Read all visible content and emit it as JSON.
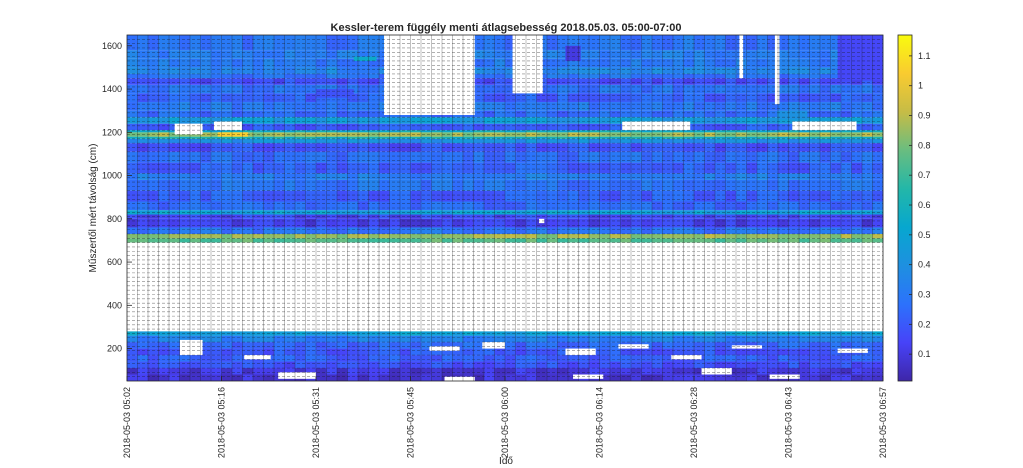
{
  "chart_data": {
    "type": "heatmap",
    "title": "Kessler-terem függély menti átlagsebesség 2018.05.03. 05:00-07:00",
    "xlabel": "Idő",
    "ylabel": "Műszertől mért távolság (cm)",
    "x_tick_labels": [
      "2018-05-03 05:02",
      "2018-05-03 05:16",
      "2018-05-03 05:31",
      "2018-05-03 05:45",
      "2018-05-03 06:00",
      "2018-05-03 06:14",
      "2018-05-03 06:28",
      "2018-05-03 06:43",
      "2018-05-03 06:57"
    ],
    "y_ticks": [
      200,
      400,
      600,
      800,
      1000,
      1200,
      1400,
      1600
    ],
    "ylim": [
      50,
      1650
    ],
    "colorbar": {
      "ticks": [
        0.1,
        0.2,
        0.3,
        0.4,
        0.5,
        0.6,
        0.7,
        0.8,
        0.9,
        1,
        1.1
      ],
      "range": [
        0.01,
        1.17
      ],
      "colormap": "parula",
      "stops": [
        "#3e26a8",
        "#4743f8",
        "#2c72fc",
        "#1e90e0",
        "#07a7cf",
        "#23b7a8",
        "#69bd80",
        "#c6bc46",
        "#f9cb30",
        "#f9fb0e"
      ]
    },
    "depth_bands": [
      {
        "from": 50,
        "to": 80,
        "value": 0.08
      },
      {
        "from": 80,
        "to": 110,
        "value": 0.1
      },
      {
        "from": 110,
        "to": 140,
        "value": 0.18
      },
      {
        "from": 140,
        "to": 170,
        "value": 0.22
      },
      {
        "from": 170,
        "to": 200,
        "value": 0.2
      },
      {
        "from": 200,
        "to": 230,
        "value": 0.24
      },
      {
        "from": 230,
        "to": 260,
        "value": 0.32
      },
      {
        "from": 260,
        "to": 280,
        "value": 0.5
      },
      {
        "from": 280,
        "to": 690,
        "value": null
      },
      {
        "from": 690,
        "to": 710,
        "value": 0.75
      },
      {
        "from": 710,
        "to": 730,
        "value": 0.85
      },
      {
        "from": 730,
        "to": 760,
        "value": 0.28
      },
      {
        "from": 760,
        "to": 800,
        "value": 0.12
      },
      {
        "from": 800,
        "to": 820,
        "value": 0.15
      },
      {
        "from": 820,
        "to": 840,
        "value": 0.5
      },
      {
        "from": 840,
        "to": 880,
        "value": 0.25
      },
      {
        "from": 880,
        "to": 930,
        "value": 0.22
      },
      {
        "from": 930,
        "to": 980,
        "value": 0.28
      },
      {
        "from": 980,
        "to": 1010,
        "value": 0.32
      },
      {
        "from": 1010,
        "to": 1060,
        "value": 0.22
      },
      {
        "from": 1060,
        "to": 1110,
        "value": 0.26
      },
      {
        "from": 1110,
        "to": 1150,
        "value": 0.18
      },
      {
        "from": 1150,
        "to": 1170,
        "value": 0.4
      },
      {
        "from": 1170,
        "to": 1180,
        "value": 0.6
      },
      {
        "from": 1180,
        "to": 1200,
        "value": 0.85
      },
      {
        "from": 1200,
        "to": 1210,
        "value": 0.55
      },
      {
        "from": 1210,
        "to": 1240,
        "value": 0.2
      },
      {
        "from": 1240,
        "to": 1270,
        "value": 0.45
      },
      {
        "from": 1270,
        "to": 1300,
        "value": 0.25
      },
      {
        "from": 1300,
        "to": 1340,
        "value": 0.3
      },
      {
        "from": 1340,
        "to": 1380,
        "value": 0.22
      },
      {
        "from": 1380,
        "to": 1420,
        "value": 0.28
      },
      {
        "from": 1420,
        "to": 1450,
        "value": 0.17
      },
      {
        "from": 1450,
        "to": 1470,
        "value": 0.28
      },
      {
        "from": 1470,
        "to": 1500,
        "value": 0.35
      },
      {
        "from": 1500,
        "to": 1540,
        "value": 0.3
      },
      {
        "from": 1540,
        "to": 1580,
        "value": 0.32
      },
      {
        "from": 1580,
        "to": 1650,
        "value": 0.28
      }
    ],
    "missing_blocks": [
      {
        "t0": 0.34,
        "t1": 0.46,
        "y0": 1280,
        "y1": 1650
      },
      {
        "t0": 0.51,
        "t1": 0.55,
        "y0": 1380,
        "y1": 1650
      },
      {
        "t0": 0.857,
        "t1": 0.863,
        "y0": 1330,
        "y1": 1650
      },
      {
        "t0": 0.81,
        "t1": 0.815,
        "y0": 1450,
        "y1": 1650
      },
      {
        "t0": 0.063,
        "t1": 0.1,
        "y0": 1190,
        "y1": 1240
      },
      {
        "t0": 0.115,
        "t1": 0.152,
        "y0": 1210,
        "y1": 1250
      },
      {
        "t0": 0.655,
        "t1": 0.745,
        "y0": 1210,
        "y1": 1250
      },
      {
        "t0": 0.88,
        "t1": 0.965,
        "y0": 1210,
        "y1": 1250
      },
      {
        "t0": 0.545,
        "t1": 0.552,
        "y0": 780,
        "y1": 800
      },
      {
        "t0": 0.0,
        "t1": 1.0,
        "y0": 280,
        "y1": 690
      },
      {
        "t0": 0.07,
        "t1": 0.1,
        "y0": 170,
        "y1": 240
      },
      {
        "t0": 0.155,
        "t1": 0.19,
        "y0": 150,
        "y1": 170
      },
      {
        "t0": 0.4,
        "t1": 0.44,
        "y0": 190,
        "y1": 210
      },
      {
        "t0": 0.47,
        "t1": 0.5,
        "y0": 200,
        "y1": 230
      },
      {
        "t0": 0.58,
        "t1": 0.62,
        "y0": 170,
        "y1": 200
      },
      {
        "t0": 0.65,
        "t1": 0.69,
        "y0": 200,
        "y1": 220
      },
      {
        "t0": 0.72,
        "t1": 0.76,
        "y0": 150,
        "y1": 170
      },
      {
        "t0": 0.8,
        "t1": 0.84,
        "y0": 200,
        "y1": 215
      },
      {
        "t0": 0.94,
        "t1": 0.98,
        "y0": 180,
        "y1": 200
      },
      {
        "t0": 0.2,
        "t1": 0.25,
        "y0": 60,
        "y1": 90
      },
      {
        "t0": 0.42,
        "t1": 0.46,
        "y0": 50,
        "y1": 70
      },
      {
        "t0": 0.59,
        "t1": 0.63,
        "y0": 60,
        "y1": 80
      },
      {
        "t0": 0.76,
        "t1": 0.8,
        "y0": 80,
        "y1": 110
      },
      {
        "t0": 0.85,
        "t1": 0.89,
        "y0": 60,
        "y1": 80
      }
    ],
    "highlights": [
      {
        "t0": 0.25,
        "t1": 0.3,
        "y0": 1360,
        "y1": 1400,
        "value": 0.18
      },
      {
        "t0": 0.58,
        "t1": 0.6,
        "y0": 1530,
        "y1": 1600,
        "value": 0.1
      },
      {
        "t0": 0.86,
        "t1": 0.9,
        "y0": 1260,
        "y1": 1300,
        "value": 0.4
      },
      {
        "t0": 0.94,
        "t1": 1.0,
        "y0": 1440,
        "y1": 1650,
        "value": 0.15
      },
      {
        "t0": 0.37,
        "t1": 0.4,
        "y0": 300,
        "y1": 320,
        "value": 0.1
      },
      {
        "t0": 0.5,
        "t1": 0.55,
        "y0": 300,
        "y1": 330,
        "value": 0.1
      },
      {
        "t0": 0.82,
        "t1": 0.86,
        "y0": 300,
        "y1": 320,
        "value": 0.1
      },
      {
        "t0": 0.12,
        "t1": 0.16,
        "y0": 1180,
        "y1": 1200,
        "value": 1.05
      },
      {
        "t0": 0.3,
        "t1": 0.33,
        "y0": 1530,
        "y1": 1550,
        "value": 0.55
      }
    ]
  }
}
